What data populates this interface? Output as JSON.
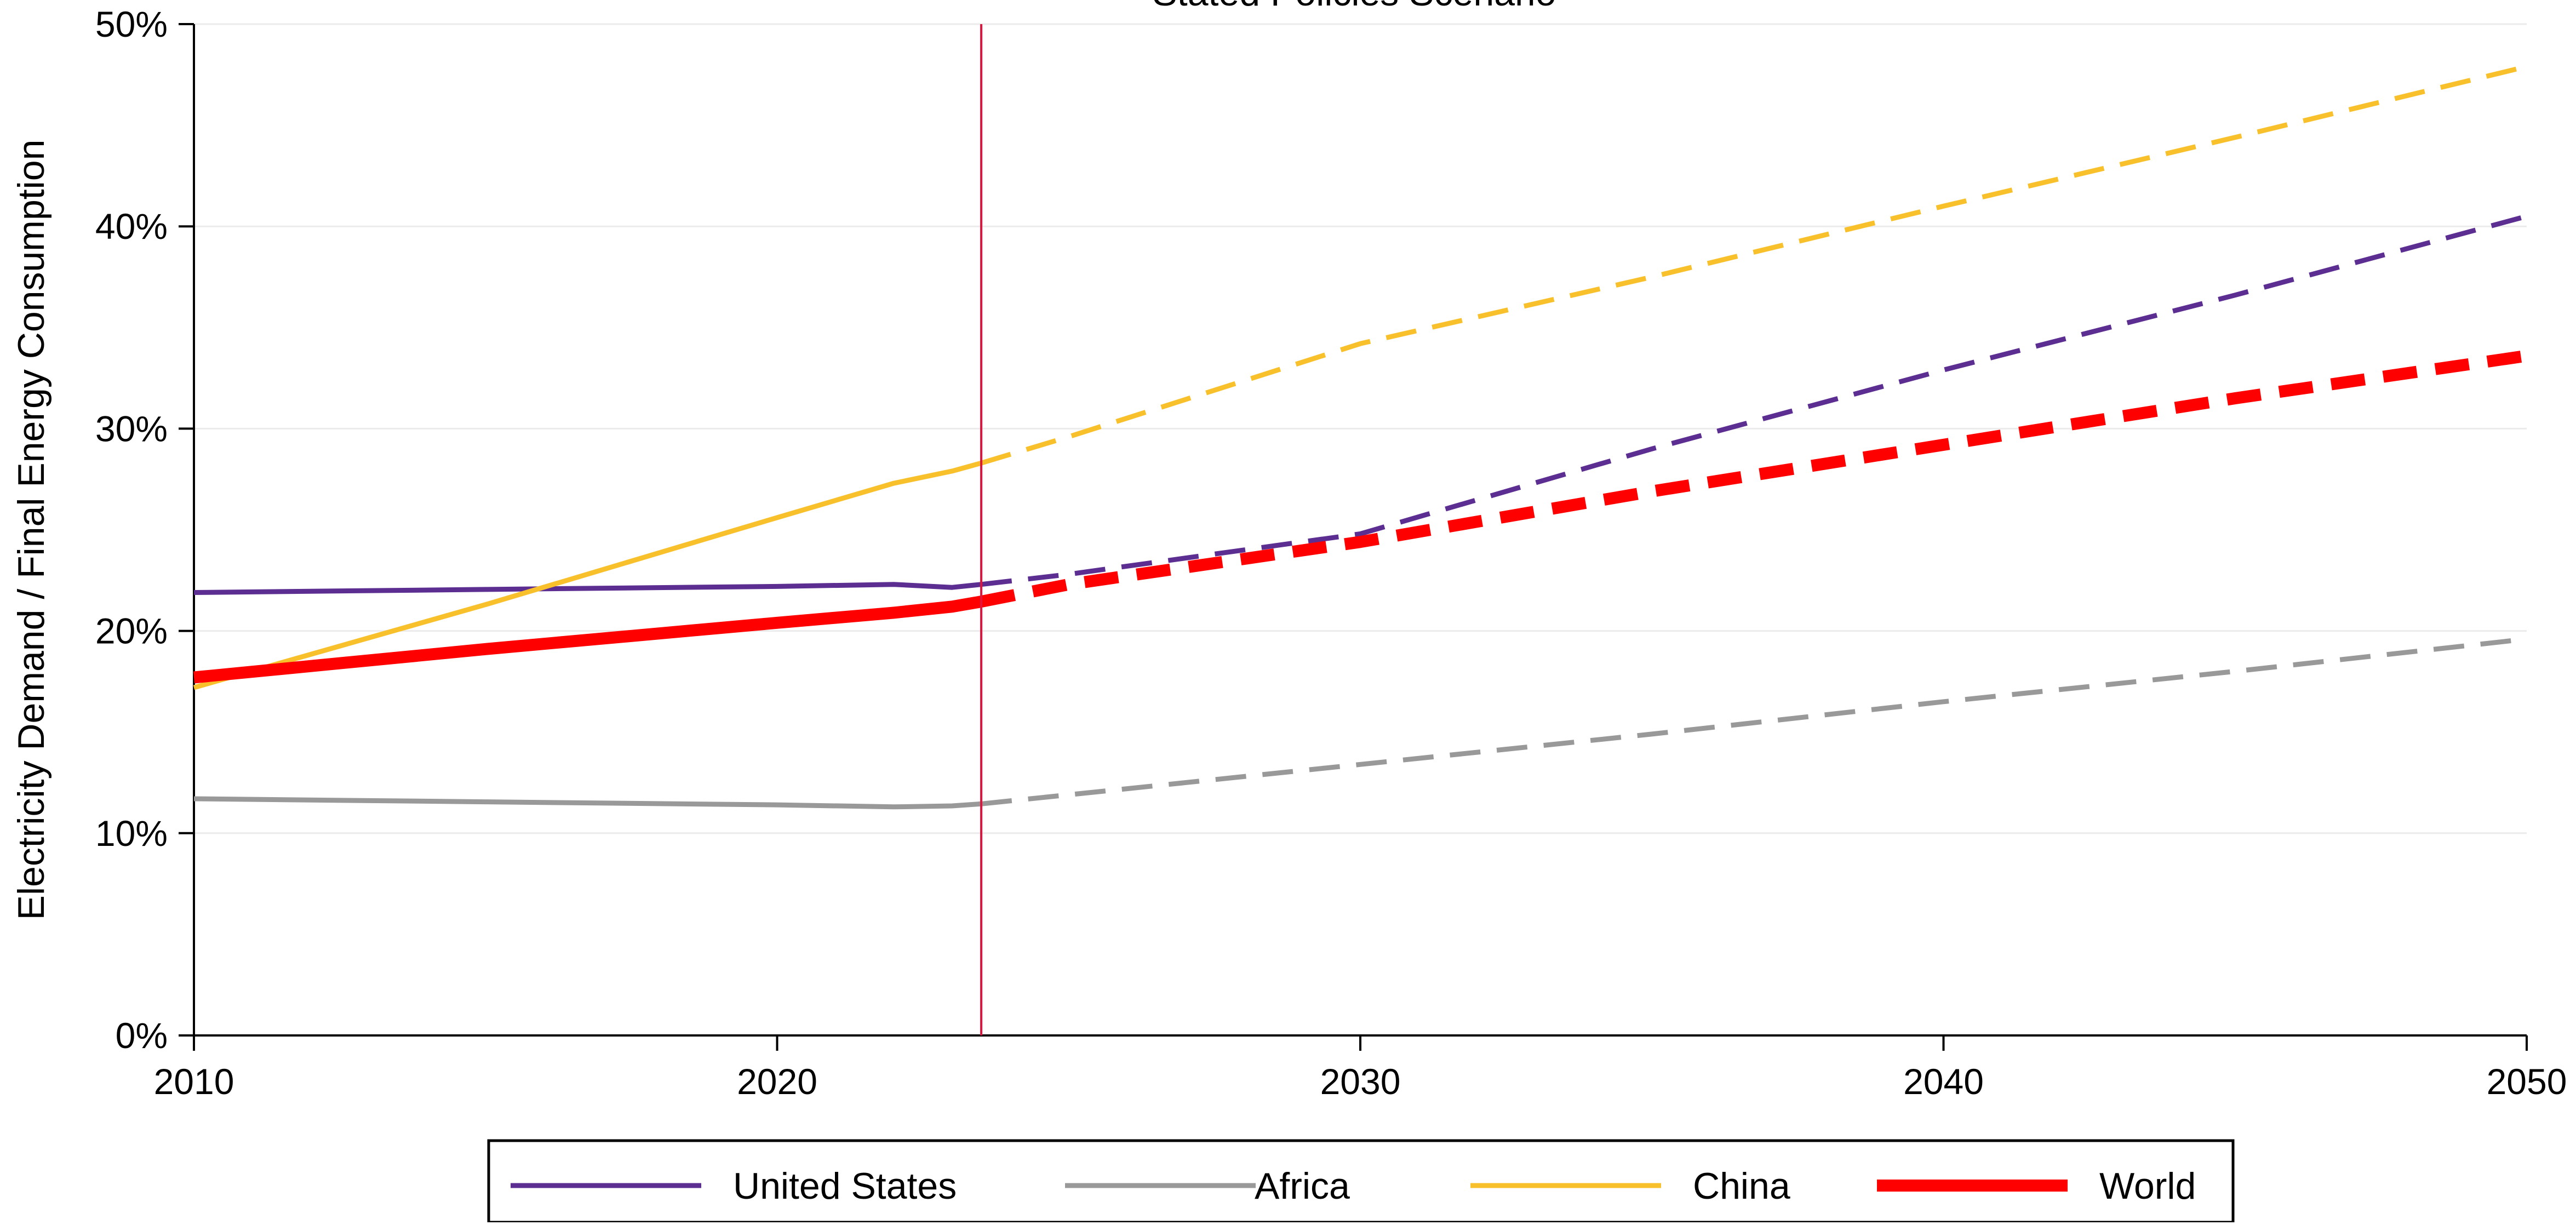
{
  "chart_data": {
    "type": "line",
    "title": "Stated Policies Scenario",
    "xlabel": "",
    "ylabel": "Electricity Demand / Final Energy Consumption",
    "xlim": [
      2010,
      2050
    ],
    "ylim": [
      0,
      50
    ],
    "x_ticks": [
      2010,
      2020,
      2030,
      2040,
      2050
    ],
    "y_ticks": [
      0,
      10,
      20,
      30,
      40,
      50
    ],
    "y_tick_labels": [
      "0%",
      "10%",
      "20%",
      "30%",
      "40%",
      "50%"
    ],
    "grid": true,
    "legend_position": "bottom",
    "marker_line_x": 2023.5,
    "projection_start_x": 2023.5,
    "series": [
      {
        "name": "United States",
        "color": "#5c2e91",
        "thick": false,
        "points": [
          [
            2010,
            21.9
          ],
          [
            2015,
            22.05
          ],
          [
            2020,
            22.2
          ],
          [
            2022,
            22.3
          ],
          [
            2023,
            22.15
          ],
          [
            2023.5,
            22.3
          ],
          [
            2025,
            22.8
          ],
          [
            2030,
            24.8
          ],
          [
            2035,
            29.0
          ],
          [
            2040,
            32.9
          ],
          [
            2045,
            36.6
          ],
          [
            2050,
            40.5
          ]
        ]
      },
      {
        "name": "Africa",
        "color": "#999999",
        "thick": false,
        "points": [
          [
            2010,
            11.7
          ],
          [
            2015,
            11.55
          ],
          [
            2020,
            11.4
          ],
          [
            2022,
            11.3
          ],
          [
            2023,
            11.35
          ],
          [
            2023.5,
            11.45
          ],
          [
            2025,
            11.9
          ],
          [
            2030,
            13.4
          ],
          [
            2035,
            14.9
          ],
          [
            2040,
            16.5
          ],
          [
            2045,
            18.0
          ],
          [
            2050,
            19.6
          ]
        ]
      },
      {
        "name": "China",
        "color": "#f8c12c",
        "thick": false,
        "points": [
          [
            2010,
            17.2
          ],
          [
            2015,
            21.3
          ],
          [
            2020,
            25.6
          ],
          [
            2022,
            27.3
          ],
          [
            2023,
            27.9
          ],
          [
            2023.5,
            28.3
          ],
          [
            2025,
            29.6
          ],
          [
            2030,
            34.2
          ],
          [
            2035,
            37.5
          ],
          [
            2040,
            41.0
          ],
          [
            2045,
            44.4
          ],
          [
            2050,
            47.9
          ]
        ]
      },
      {
        "name": "World",
        "color": "#ff0000",
        "thick": true,
        "points": [
          [
            2010,
            17.7
          ],
          [
            2015,
            19.1
          ],
          [
            2020,
            20.4
          ],
          [
            2022,
            20.9
          ],
          [
            2023,
            21.2
          ],
          [
            2023.5,
            21.45
          ],
          [
            2025,
            22.3
          ],
          [
            2030,
            24.4
          ],
          [
            2035,
            26.9
          ],
          [
            2040,
            29.2
          ],
          [
            2045,
            31.5
          ],
          [
            2050,
            33.6
          ]
        ]
      }
    ]
  }
}
